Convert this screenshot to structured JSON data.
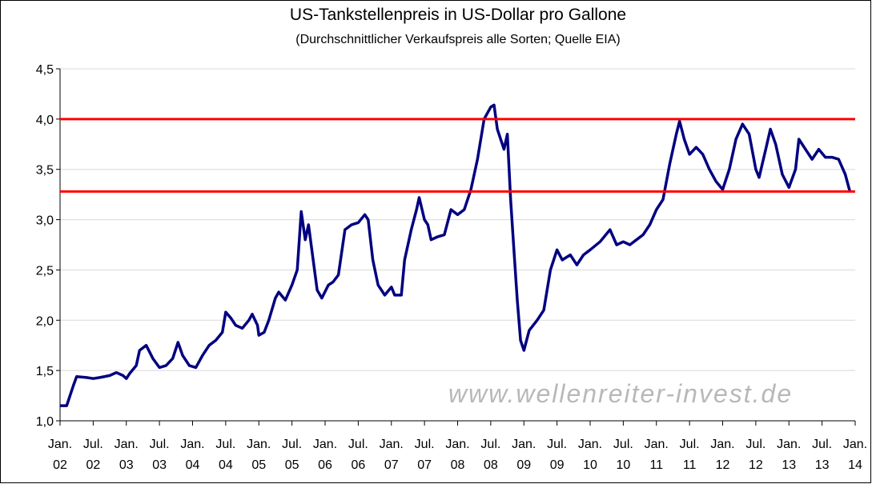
{
  "chart_data": {
    "type": "line",
    "title": "US-Tankstellenpreis in US-Dollar pro Gallone",
    "subtitle": "(Durchschnittlicher Verkaufspreis alle Sorten; Quelle EIA)",
    "watermark": "www.wellenreiter-invest.de",
    "xlim": [
      2002,
      2014
    ],
    "xticks": [
      {
        "value": 2002.0,
        "label": "Jan. 02"
      },
      {
        "value": 2002.5,
        "label": "Jul. 02"
      },
      {
        "value": 2003.0,
        "label": "Jan. 03"
      },
      {
        "value": 2003.5,
        "label": "Jul. 03"
      },
      {
        "value": 2004.0,
        "label": "Jan. 04"
      },
      {
        "value": 2004.5,
        "label": "Jul. 04"
      },
      {
        "value": 2005.0,
        "label": "Jan. 05"
      },
      {
        "value": 2005.5,
        "label": "Jul. 05"
      },
      {
        "value": 2006.0,
        "label": "Jan. 06"
      },
      {
        "value": 2006.5,
        "label": "Jul. 06"
      },
      {
        "value": 2007.0,
        "label": "Jan. 07"
      },
      {
        "value": 2007.5,
        "label": "Jul. 07"
      },
      {
        "value": 2008.0,
        "label": "Jan. 08"
      },
      {
        "value": 2008.5,
        "label": "Jul. 08"
      },
      {
        "value": 2009.0,
        "label": "Jan. 09"
      },
      {
        "value": 2009.5,
        "label": "Jul. 09"
      },
      {
        "value": 2010.0,
        "label": "Jan. 10"
      },
      {
        "value": 2010.5,
        "label": "Jul. 10"
      },
      {
        "value": 2011.0,
        "label": "Jan. 11"
      },
      {
        "value": 2011.5,
        "label": "Jul. 11"
      },
      {
        "value": 2012.0,
        "label": "Jan. 12"
      },
      {
        "value": 2012.5,
        "label": "Jul. 12"
      },
      {
        "value": 2013.0,
        "label": "Jan. 13"
      },
      {
        "value": 2013.5,
        "label": "Jul. 13"
      },
      {
        "value": 2014.0,
        "label": "Jan. 14"
      }
    ],
    "ylim": [
      1.0,
      4.5
    ],
    "yticks": [
      {
        "value": 1.0,
        "label": "1,0"
      },
      {
        "value": 1.5,
        "label": "1,5"
      },
      {
        "value": 2.0,
        "label": "2,0"
      },
      {
        "value": 2.5,
        "label": "2,5"
      },
      {
        "value": 3.0,
        "label": "3,0"
      },
      {
        "value": 3.5,
        "label": "3,5"
      },
      {
        "value": 4.0,
        "label": "4,0"
      },
      {
        "value": 4.5,
        "label": "4,5"
      }
    ],
    "grid": true,
    "hlines": [
      {
        "value": 4.0,
        "color": "#ff0000"
      },
      {
        "value": 3.28,
        "color": "#ff0000"
      }
    ],
    "series": [
      {
        "color": "#000080",
        "x": [
          2002.0,
          2002.1,
          2002.2,
          2002.25,
          2002.4,
          2002.5,
          2002.6,
          2002.75,
          2002.85,
          2002.95,
          2003.0,
          2003.05,
          2003.15,
          2003.2,
          2003.3,
          2003.4,
          2003.5,
          2003.6,
          2003.7,
          2003.78,
          2003.85,
          2003.95,
          2004.05,
          2004.15,
          2004.25,
          2004.35,
          2004.45,
          2004.5,
          2004.58,
          2004.65,
          2004.75,
          2004.85,
          2004.9,
          2004.98,
          2005.0,
          2005.08,
          2005.15,
          2005.25,
          2005.3,
          2005.4,
          2005.5,
          2005.58,
          2005.64,
          2005.7,
          2005.75,
          2005.82,
          2005.88,
          2005.95,
          2006.05,
          2006.12,
          2006.2,
          2006.3,
          2006.4,
          2006.5,
          2006.6,
          2006.65,
          2006.72,
          2006.8,
          2006.9,
          2007.0,
          2007.05,
          2007.15,
          2007.2,
          2007.3,
          2007.38,
          2007.42,
          2007.5,
          2007.55,
          2007.6,
          2007.7,
          2007.8,
          2007.9,
          2008.0,
          2008.1,
          2008.2,
          2008.3,
          2008.4,
          2008.5,
          2008.55,
          2008.6,
          2008.7,
          2008.75,
          2008.8,
          2008.85,
          2008.9,
          2008.95,
          2009.0,
          2009.08,
          2009.2,
          2009.3,
          2009.4,
          2009.5,
          2009.58,
          2009.7,
          2009.8,
          2009.9,
          2010.0,
          2010.15,
          2010.3,
          2010.4,
          2010.5,
          2010.6,
          2010.7,
          2010.8,
          2010.9,
          2011.0,
          2011.1,
          2011.2,
          2011.3,
          2011.35,
          2011.42,
          2011.5,
          2011.6,
          2011.7,
          2011.8,
          2011.9,
          2012.0,
          2012.1,
          2012.2,
          2012.3,
          2012.4,
          2012.5,
          2012.55,
          2012.65,
          2012.72,
          2012.8,
          2012.9,
          2013.0,
          2013.1,
          2013.15,
          2013.25,
          2013.35,
          2013.45,
          2013.55,
          2013.65,
          2013.75,
          2013.85,
          2013.92
        ],
        "values": [
          1.15,
          1.15,
          1.35,
          1.44,
          1.43,
          1.42,
          1.43,
          1.45,
          1.48,
          1.45,
          1.42,
          1.47,
          1.55,
          1.7,
          1.75,
          1.62,
          1.53,
          1.55,
          1.62,
          1.78,
          1.65,
          1.55,
          1.53,
          1.65,
          1.75,
          1.8,
          1.88,
          2.08,
          2.02,
          1.95,
          1.92,
          2.0,
          2.06,
          1.95,
          1.85,
          1.88,
          2.0,
          2.22,
          2.28,
          2.2,
          2.35,
          2.5,
          3.08,
          2.8,
          2.95,
          2.6,
          2.3,
          2.22,
          2.35,
          2.38,
          2.45,
          2.9,
          2.95,
          2.97,
          3.05,
          3.0,
          2.6,
          2.35,
          2.25,
          2.33,
          2.25,
          2.25,
          2.6,
          2.9,
          3.1,
          3.22,
          3.0,
          2.95,
          2.8,
          2.83,
          2.85,
          3.1,
          3.05,
          3.1,
          3.3,
          3.6,
          4.0,
          4.12,
          4.14,
          3.9,
          3.7,
          3.85,
          3.2,
          2.7,
          2.2,
          1.8,
          1.7,
          1.9,
          2.0,
          2.1,
          2.5,
          2.7,
          2.6,
          2.65,
          2.55,
          2.65,
          2.7,
          2.78,
          2.9,
          2.75,
          2.78,
          2.75,
          2.8,
          2.85,
          2.95,
          3.1,
          3.2,
          3.55,
          3.85,
          3.98,
          3.8,
          3.65,
          3.72,
          3.65,
          3.5,
          3.38,
          3.3,
          3.5,
          3.8,
          3.95,
          3.85,
          3.5,
          3.42,
          3.7,
          3.9,
          3.75,
          3.45,
          3.32,
          3.5,
          3.8,
          3.7,
          3.6,
          3.7,
          3.62,
          3.62,
          3.6,
          3.45,
          3.28
        ]
      }
    ]
  }
}
